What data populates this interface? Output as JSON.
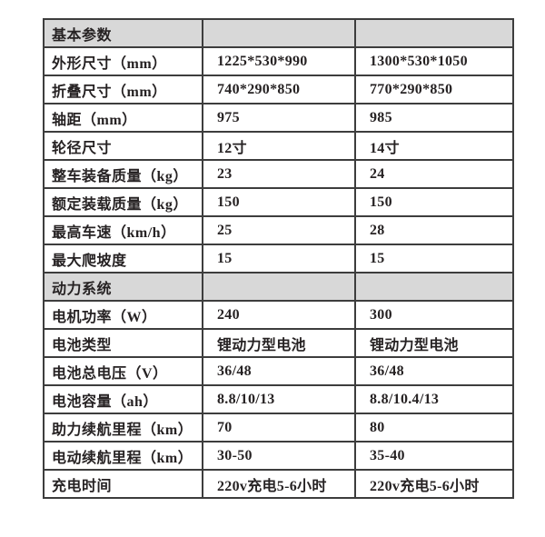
{
  "colors": {
    "section_header_bg": "#d8d8d8",
    "border": "#3d3d3d",
    "text": "#262223",
    "page_bg": "#ffffff"
  },
  "table": {
    "rows": [
      {
        "type": "section",
        "label": "基本参数"
      },
      {
        "type": "data",
        "label": "外形尺寸（mm）",
        "v1": "1225*530*990",
        "v2": "1300*530*1050"
      },
      {
        "type": "data",
        "label": "折叠尺寸（mm）",
        "v1": "740*290*850",
        "v2": "770*290*850"
      },
      {
        "type": "data",
        "label": "轴距（mm）",
        "v1": "975",
        "v2": "985"
      },
      {
        "type": "data",
        "label": "轮径尺寸",
        "v1": "12寸",
        "v2": "14寸"
      },
      {
        "type": "data",
        "label": "整车装备质量（kg）",
        "v1": "23",
        "v2": "24"
      },
      {
        "type": "data",
        "label": "额定装载质量（kg）",
        "v1": "150",
        "v2": "150"
      },
      {
        "type": "data",
        "label": "最高车速（km/h）",
        "v1": "25",
        "v2": "28"
      },
      {
        "type": "data",
        "label": "最大爬坡度",
        "v1": "15",
        "v2": "15"
      },
      {
        "type": "section",
        "label": "动力系统"
      },
      {
        "type": "data",
        "label": "电机功率（W）",
        "v1": "240",
        "v2": "300"
      },
      {
        "type": "data",
        "label": "电池类型",
        "v1": "锂动力型电池",
        "v2": "锂动力型电池"
      },
      {
        "type": "data",
        "label": "电池总电压（V）",
        "v1": "36/48",
        "v2": "36/48"
      },
      {
        "type": "data",
        "label": "电池容量（ah）",
        "v1": "8.8/10/13",
        "v2": "8.8/10.4/13"
      },
      {
        "type": "data",
        "label": "助力续航里程（km）",
        "v1": "70",
        "v2": "80"
      },
      {
        "type": "data",
        "label": "电动续航里程（km）",
        "v1": "30-50",
        "v2": "35-40"
      },
      {
        "type": "data",
        "label": "充电时间",
        "v1": "220v充电5-6小时",
        "v2": "220v充电5-6小时"
      }
    ]
  }
}
